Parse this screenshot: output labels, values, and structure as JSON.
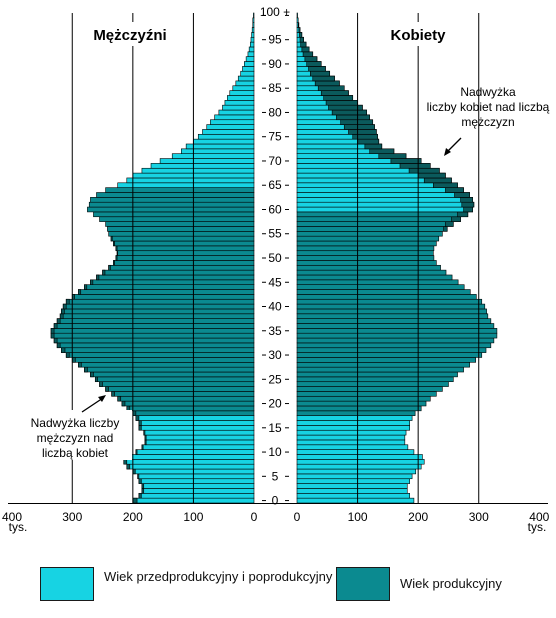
{
  "chart_data": {
    "type": "bar",
    "orientation": "horizontal-population-pyramid",
    "age_ticks": [
      "0",
      "5",
      "10",
      "15",
      "20",
      "25",
      "30",
      "35",
      "40",
      "45",
      "50",
      "55",
      "60",
      "65",
      "70",
      "75",
      "80",
      "85",
      "90",
      "95",
      "100 +"
    ],
    "unit_label": "tys.",
    "x_ticks_left": [
      "400",
      "300",
      "200",
      "100",
      "0"
    ],
    "x_ticks_right": [
      "0",
      "100",
      "200",
      "300",
      "400"
    ],
    "xlim": [
      0,
      400
    ],
    "grid": true,
    "panels": {
      "men": {
        "title": "Mężczyźni"
      },
      "women": {
        "title": "Kobiety"
      }
    },
    "annotations": {
      "men": "Nadwyżka liczby mężczyzn nad liczbą kobiet",
      "women": "Nadwyżka liczby kobiet nad liczbą mężczyzn"
    },
    "legend": {
      "pre_post": "Wiek przedprodukcyjny i poprodukcyjny",
      "productive": "Wiek produkcyjny",
      "position": "bottom"
    },
    "colors": {
      "pre_post": "#17d3e3",
      "productive": "#0b8a90",
      "excess": "#0b5a5c",
      "grid": "#000000"
    },
    "productive_age_range": {
      "men": [
        18,
        64
      ],
      "women": [
        18,
        59
      ]
    },
    "series": [
      {
        "name": "Mężczyźni",
        "values": [
          200,
          190,
          185,
          185,
          190,
          192,
          200,
          210,
          215,
          210,
          195,
          185,
          180,
          180,
          182,
          190,
          190,
          195,
          200,
          210,
          218,
          225,
          235,
          245,
          255,
          262,
          270,
          280,
          290,
          300,
          310,
          318,
          325,
          330,
          335,
          335,
          330,
          325,
          320,
          318,
          315,
          310,
          300,
          290,
          280,
          270,
          260,
          250,
          240,
          232,
          228,
          226,
          228,
          232,
          236,
          240,
          242,
          245,
          255,
          265,
          275,
          272,
          270,
          260,
          245,
          225,
          210,
          200,
          185,
          170,
          155,
          135,
          120,
          112,
          100,
          92,
          85,
          78,
          72,
          65,
          58,
          52,
          48,
          44,
          40,
          35,
          30,
          26,
          22,
          19,
          16,
          13,
          10,
          8,
          6,
          5,
          4,
          3,
          2,
          2,
          1
        ]
      },
      {
        "name": "Kobiety",
        "values": [
          193,
          186,
          182,
          182,
          186,
          190,
          196,
          205,
          210,
          207,
          193,
          183,
          178,
          178,
          180,
          186,
          186,
          190,
          195,
          205,
          213,
          220,
          230,
          240,
          250,
          258,
          265,
          275,
          285,
          295,
          305,
          312,
          320,
          325,
          330,
          330,
          325,
          320,
          315,
          313,
          310,
          305,
          296,
          286,
          276,
          266,
          256,
          246,
          237,
          230,
          226,
          225,
          226,
          230,
          234,
          240,
          248,
          258,
          270,
          282,
          290,
          292,
          290,
          285,
          275,
          265,
          255,
          245,
          235,
          220,
          205,
          180,
          160,
          140,
          135,
          133,
          131,
          128,
          125,
          120,
          115,
          108,
          100,
          92,
          85,
          78,
          70,
          62,
          54,
          47,
          40,
          33,
          26,
          20,
          15,
          11,
          8,
          5,
          3,
          2,
          1
        ]
      }
    ]
  }
}
